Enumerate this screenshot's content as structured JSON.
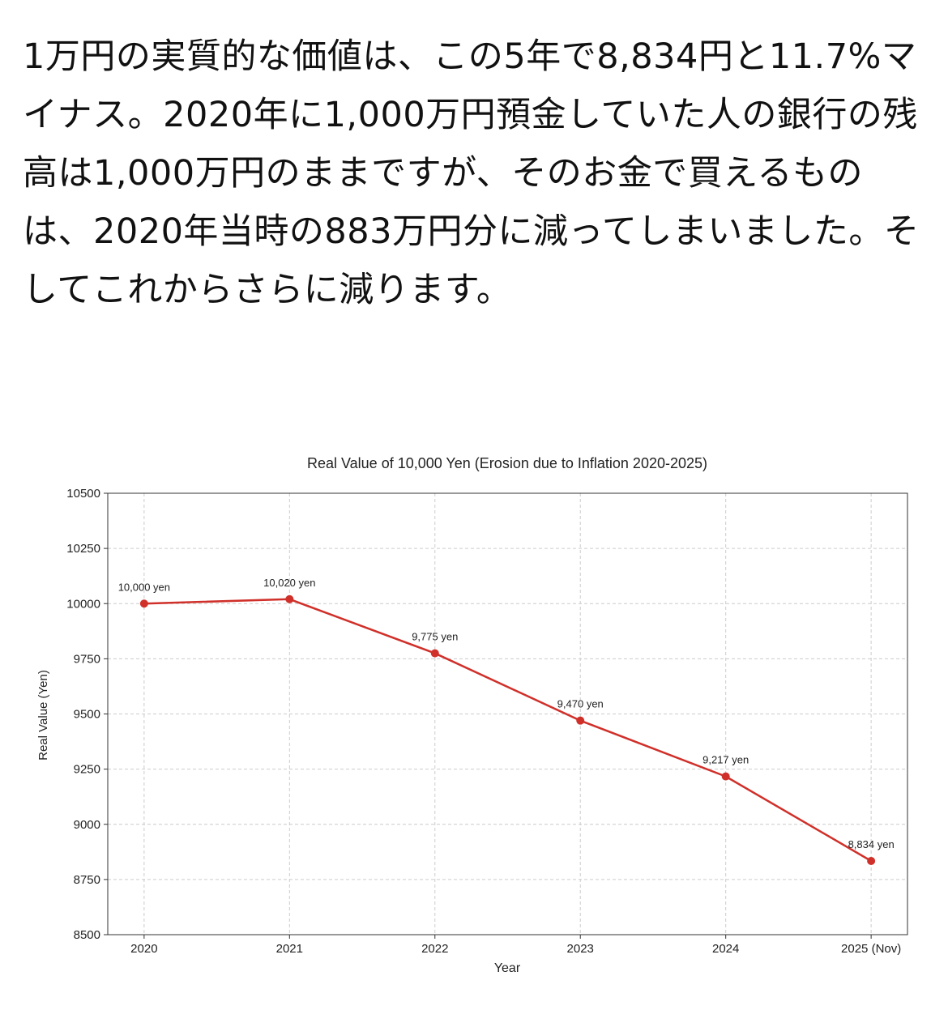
{
  "post": {
    "text": "1万円の実質的な価値は、この5年で8,834円と11.7%マイナス。2020年に1,000万円預金していた人の銀行の残高は1,000万円のままですが、そのお金で買えるものは、2020年当時の883万円分に減ってしまいました。そしてこれからさらに減ります。"
  },
  "chart_data": {
    "type": "line",
    "title": "Real Value of 10,000 Yen (Erosion due to Inflation 2020-2025)",
    "x_label": "Year",
    "y_label": "Real Value (Yen)",
    "categories": [
      "2020",
      "2021",
      "2022",
      "2023",
      "2024",
      "2025 (Nov)"
    ],
    "series": [
      {
        "name": "Real Value",
        "color": "#d0302a",
        "values": [
          10000,
          10020,
          9775,
          9470,
          9217,
          8834
        ],
        "value_labels": [
          "10,000 yen",
          "10,020 yen",
          "9,775 yen",
          "9,470 yen",
          "9,217 yen",
          "8,834 yen"
        ]
      }
    ],
    "ylim": [
      8500,
      10500
    ],
    "yticks": [
      8500,
      8750,
      9000,
      9250,
      9500,
      9750,
      10000,
      10250,
      10500
    ],
    "grid": true
  }
}
